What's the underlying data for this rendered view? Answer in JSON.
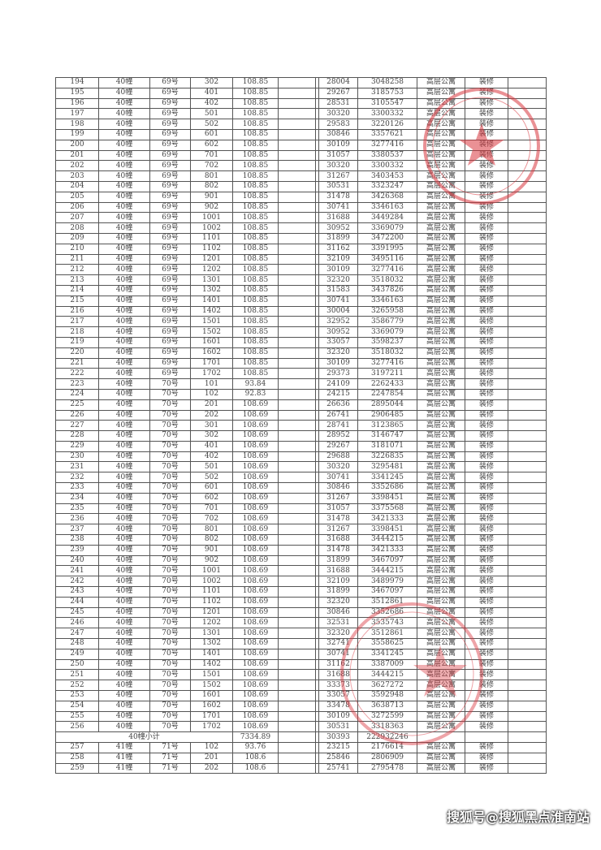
{
  "table": {
    "rows": [
      [
        "194",
        "40幢",
        "69号",
        "302",
        "108.85",
        "",
        "",
        "28004",
        "3048258",
        "高层公寓",
        "装修",
        ""
      ],
      [
        "195",
        "40幢",
        "69号",
        "401",
        "108.85",
        "",
        "",
        "29267",
        "3185753",
        "高层公寓",
        "装修",
        ""
      ],
      [
        "196",
        "40幢",
        "69号",
        "402",
        "108.85",
        "",
        "",
        "28531",
        "3105547",
        "高层公寓",
        "装修",
        ""
      ],
      [
        "197",
        "40幢",
        "69号",
        "501",
        "108.85",
        "",
        "",
        "30320",
        "3300332",
        "高层公寓",
        "装修",
        ""
      ],
      [
        "198",
        "40幢",
        "69号",
        "502",
        "108.85",
        "",
        "",
        "29583",
        "3220126",
        "高层公寓",
        "装修",
        ""
      ],
      [
        "199",
        "40幢",
        "69号",
        "601",
        "108.85",
        "",
        "",
        "30846",
        "3357621",
        "高层公寓",
        "装修",
        ""
      ],
      [
        "200",
        "40幢",
        "69号",
        "602",
        "108.85",
        "",
        "",
        "30109",
        "3277416",
        "高层公寓",
        "装修",
        ""
      ],
      [
        "201",
        "40幢",
        "69号",
        "701",
        "108.85",
        "",
        "",
        "31057",
        "3380537",
        "高层公寓",
        "装修",
        ""
      ],
      [
        "202",
        "40幢",
        "69号",
        "702",
        "108.85",
        "",
        "",
        "30320",
        "3300332",
        "高层公寓",
        "装修",
        ""
      ],
      [
        "203",
        "40幢",
        "69号",
        "801",
        "108.85",
        "",
        "",
        "31267",
        "3403453",
        "高层公寓",
        "装修",
        ""
      ],
      [
        "204",
        "40幢",
        "69号",
        "802",
        "108.85",
        "",
        "",
        "30531",
        "3323247",
        "高层公寓",
        "装修",
        ""
      ],
      [
        "205",
        "40幢",
        "69号",
        "901",
        "108.85",
        "",
        "",
        "31478",
        "3426368",
        "高层公寓",
        "装修",
        ""
      ],
      [
        "206",
        "40幢",
        "69号",
        "902",
        "108.85",
        "",
        "",
        "30741",
        "3346163",
        "高层公寓",
        "装修",
        ""
      ],
      [
        "207",
        "40幢",
        "69号",
        "1001",
        "108.85",
        "",
        "",
        "31688",
        "3449284",
        "高层公寓",
        "装修",
        ""
      ],
      [
        "208",
        "40幢",
        "69号",
        "1002",
        "108.85",
        "",
        "",
        "30952",
        "3369079",
        "高层公寓",
        "装修",
        ""
      ],
      [
        "209",
        "40幢",
        "69号",
        "1101",
        "108.85",
        "",
        "",
        "31899",
        "3472200",
        "高层公寓",
        "装修",
        ""
      ],
      [
        "210",
        "40幢",
        "69号",
        "1102",
        "108.85",
        "",
        "",
        "31162",
        "3391995",
        "高层公寓",
        "装修",
        ""
      ],
      [
        "211",
        "40幢",
        "69号",
        "1201",
        "108.85",
        "",
        "",
        "32109",
        "3495116",
        "高层公寓",
        "装修",
        ""
      ],
      [
        "212",
        "40幢",
        "69号",
        "1202",
        "108.85",
        "",
        "",
        "30109",
        "3277416",
        "高层公寓",
        "装修",
        ""
      ],
      [
        "213",
        "40幢",
        "69号",
        "1301",
        "108.85",
        "",
        "",
        "32320",
        "3518032",
        "高层公寓",
        "装修",
        ""
      ],
      [
        "214",
        "40幢",
        "69号",
        "1302",
        "108.85",
        "",
        "",
        "31583",
        "3437826",
        "高层公寓",
        "装修",
        ""
      ],
      [
        "215",
        "40幢",
        "69号",
        "1401",
        "108.85",
        "",
        "",
        "30741",
        "3346163",
        "高层公寓",
        "装修",
        ""
      ],
      [
        "216",
        "40幢",
        "69号",
        "1402",
        "108.85",
        "",
        "",
        "30004",
        "3265958",
        "高层公寓",
        "装修",
        ""
      ],
      [
        "217",
        "40幢",
        "69号",
        "1501",
        "108.85",
        "",
        "",
        "32952",
        "3586779",
        "高层公寓",
        "装修",
        ""
      ],
      [
        "218",
        "40幢",
        "69号",
        "1502",
        "108.85",
        "",
        "",
        "30952",
        "3369079",
        "高层公寓",
        "装修",
        ""
      ],
      [
        "219",
        "40幢",
        "69号",
        "1601",
        "108.85",
        "",
        "",
        "33057",
        "3598237",
        "高层公寓",
        "装修",
        ""
      ],
      [
        "220",
        "40幢",
        "69号",
        "1602",
        "108.85",
        "",
        "",
        "32320",
        "3518032",
        "高层公寓",
        "装修",
        ""
      ],
      [
        "221",
        "40幢",
        "69号",
        "1701",
        "108.85",
        "",
        "",
        "30109",
        "3277416",
        "高层公寓",
        "装修",
        ""
      ],
      [
        "222",
        "40幢",
        "69号",
        "1702",
        "108.85",
        "",
        "",
        "29373",
        "3197211",
        "高层公寓",
        "装修",
        ""
      ],
      [
        "223",
        "40幢",
        "70号",
        "101",
        "93.84",
        "",
        "",
        "24109",
        "2262433",
        "高层公寓",
        "装修",
        ""
      ],
      [
        "224",
        "40幢",
        "70号",
        "102",
        "92.83",
        "",
        "",
        "24215",
        "2247854",
        "高层公寓",
        "装修",
        ""
      ],
      [
        "225",
        "40幢",
        "70号",
        "201",
        "108.69",
        "",
        "",
        "26636",
        "2895044",
        "高层公寓",
        "装修",
        ""
      ],
      [
        "226",
        "40幢",
        "70号",
        "202",
        "108.69",
        "",
        "",
        "26741",
        "2906485",
        "高层公寓",
        "装修",
        ""
      ],
      [
        "227",
        "40幢",
        "70号",
        "301",
        "108.69",
        "",
        "",
        "28741",
        "3123865",
        "高层公寓",
        "装修",
        ""
      ],
      [
        "228",
        "40幢",
        "70号",
        "302",
        "108.69",
        "",
        "",
        "28952",
        "3146747",
        "高层公寓",
        "装修",
        ""
      ],
      [
        "229",
        "40幢",
        "70号",
        "401",
        "108.69",
        "",
        "",
        "29267",
        "3181071",
        "高层公寓",
        "装修",
        ""
      ],
      [
        "230",
        "40幢",
        "70号",
        "402",
        "108.69",
        "",
        "",
        "29688",
        "3226835",
        "高层公寓",
        "装修",
        ""
      ],
      [
        "231",
        "40幢",
        "70号",
        "501",
        "108.69",
        "",
        "",
        "30320",
        "3295481",
        "高层公寓",
        "装修",
        ""
      ],
      [
        "232",
        "40幢",
        "70号",
        "502",
        "108.69",
        "",
        "",
        "30741",
        "3341245",
        "高层公寓",
        "装修",
        ""
      ],
      [
        "233",
        "40幢",
        "70号",
        "601",
        "108.69",
        "",
        "",
        "30846",
        "3352686",
        "高层公寓",
        "装修",
        ""
      ],
      [
        "234",
        "40幢",
        "70号",
        "602",
        "108.69",
        "",
        "",
        "31267",
        "3398451",
        "高层公寓",
        "装修",
        ""
      ],
      [
        "235",
        "40幢",
        "70号",
        "701",
        "108.69",
        "",
        "",
        "31057",
        "3375568",
        "高层公寓",
        "装修",
        ""
      ],
      [
        "236",
        "40幢",
        "70号",
        "702",
        "108.69",
        "",
        "",
        "31478",
        "3421333",
        "高层公寓",
        "装修",
        ""
      ],
      [
        "237",
        "40幢",
        "70号",
        "801",
        "108.69",
        "",
        "",
        "31267",
        "3398451",
        "高层公寓",
        "装修",
        ""
      ],
      [
        "238",
        "40幢",
        "70号",
        "802",
        "108.69",
        "",
        "",
        "31688",
        "3444215",
        "高层公寓",
        "装修",
        ""
      ],
      [
        "239",
        "40幢",
        "70号",
        "901",
        "108.69",
        "",
        "",
        "31478",
        "3421333",
        "高层公寓",
        "装修",
        ""
      ],
      [
        "240",
        "40幢",
        "70号",
        "902",
        "108.69",
        "",
        "",
        "31899",
        "3467097",
        "高层公寓",
        "装修",
        ""
      ],
      [
        "241",
        "40幢",
        "70号",
        "1001",
        "108.69",
        "",
        "",
        "31688",
        "3444215",
        "高层公寓",
        "装修",
        ""
      ],
      [
        "242",
        "40幢",
        "70号",
        "1002",
        "108.69",
        "",
        "",
        "32109",
        "3489979",
        "高层公寓",
        "装修",
        ""
      ],
      [
        "243",
        "40幢",
        "70号",
        "1101",
        "108.69",
        "",
        "",
        "31899",
        "3467097",
        "高层公寓",
        "装修",
        ""
      ],
      [
        "244",
        "40幢",
        "70号",
        "1102",
        "108.69",
        "",
        "",
        "32320",
        "3512861",
        "高层公寓",
        "装修",
        ""
      ],
      [
        "245",
        "40幢",
        "70号",
        "1201",
        "108.69",
        "",
        "",
        "30846",
        "3352686",
        "高层公寓",
        "装修",
        ""
      ],
      [
        "246",
        "40幢",
        "70号",
        "1202",
        "108.69",
        "",
        "",
        "32531",
        "3535743",
        "高层公寓",
        "装修",
        ""
      ],
      [
        "247",
        "40幢",
        "70号",
        "1301",
        "108.69",
        "",
        "",
        "32320",
        "3512861",
        "高层公寓",
        "装修",
        ""
      ],
      [
        "248",
        "40幢",
        "70号",
        "1302",
        "108.69",
        "",
        "",
        "32741",
        "3558625",
        "高层公寓",
        "装修",
        ""
      ],
      [
        "249",
        "40幢",
        "70号",
        "1401",
        "108.69",
        "",
        "",
        "30741",
        "3341245",
        "高层公寓",
        "装修",
        ""
      ],
      [
        "250",
        "40幢",
        "70号",
        "1402",
        "108.69",
        "",
        "",
        "31162",
        "3387009",
        "高层公寓",
        "装修",
        ""
      ],
      [
        "251",
        "40幢",
        "70号",
        "1501",
        "108.69",
        "",
        "",
        "31688",
        "3444215",
        "高层公寓",
        "装修",
        ""
      ],
      [
        "252",
        "40幢",
        "70号",
        "1502",
        "108.69",
        "",
        "",
        "33373",
        "3627272",
        "高层公寓",
        "装修",
        ""
      ],
      [
        "253",
        "40幢",
        "70号",
        "1601",
        "108.69",
        "",
        "",
        "33057",
        "3592948",
        "高层公寓",
        "装修",
        ""
      ],
      [
        "254",
        "40幢",
        "70号",
        "1602",
        "108.69",
        "",
        "",
        "33478",
        "3638713",
        "高层公寓",
        "装修",
        ""
      ],
      [
        "255",
        "40幢",
        "70号",
        "1701",
        "108.69",
        "",
        "",
        "30109",
        "3272599",
        "高层公寓",
        "装修",
        ""
      ],
      [
        "256",
        "40幢",
        "70号",
        "1702",
        "108.69",
        "",
        "",
        "30531",
        "3318363",
        "高层公寓",
        "装修",
        ""
      ]
    ],
    "subtotal": {
      "label": "40幢小计",
      "area": "7334.89",
      "price": "30393",
      "total": "222932246"
    },
    "rows_after": [
      [
        "257",
        "41幢",
        "71号",
        "102",
        "93.76",
        "",
        "",
        "23215",
        "2176614",
        "高层公寓",
        "装修",
        ""
      ],
      [
        "258",
        "41幢",
        "71号",
        "201",
        "108.6",
        "",
        "",
        "25846",
        "2806909",
        "高层公寓",
        "装修",
        ""
      ],
      [
        "259",
        "41幢",
        "71号",
        "202",
        "108.6",
        "",
        "",
        "25741",
        "2795478",
        "高层公寓",
        "装修",
        ""
      ]
    ]
  },
  "watermark": "搜狐号@搜狐黑点淮南站",
  "colors": {
    "stamp": "#d9363e",
    "grid": "#555555"
  }
}
